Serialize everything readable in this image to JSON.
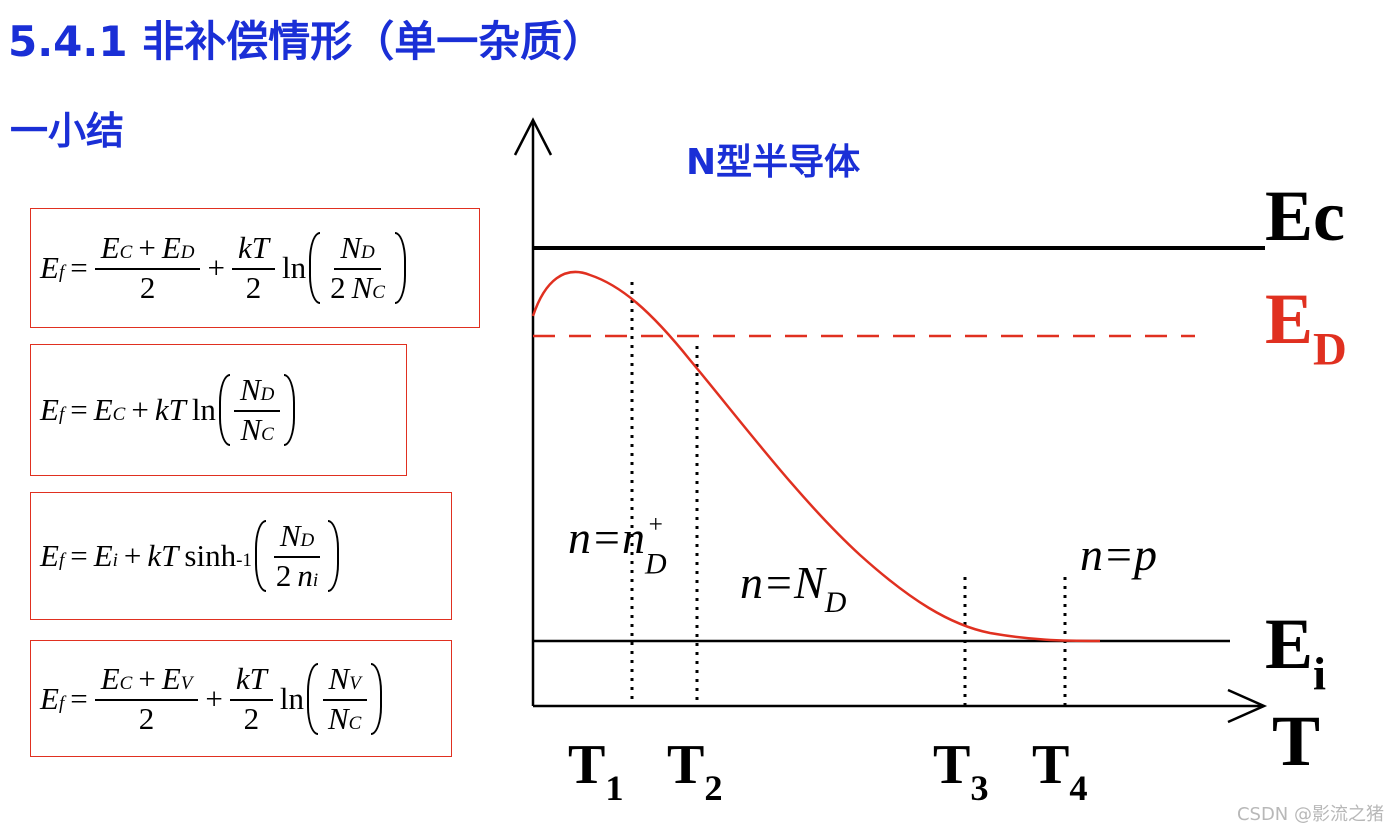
{
  "title": "5.4.1 非补偿情形（单一杂质）",
  "subtitle": "一小结",
  "formulas": [
    [
      {
        "t": "E",
        "sub": "f"
      },
      {
        "t": "="
      },
      {
        "frac": {
          "num": [
            {
              "t": "E",
              "sub": "C"
            },
            {
              "t": "+"
            },
            {
              "t": "E",
              "sub": "D"
            }
          ],
          "den": [
            {
              "t": "2"
            }
          ]
        }
      },
      {
        "t": "+"
      },
      {
        "frac": {
          "num": [
            {
              "t": "kT"
            }
          ],
          "den": [
            {
              "t": "2"
            }
          ]
        }
      },
      {
        "t": "ln"
      },
      {
        "paren": [
          {
            "frac": {
              "num": [
                {
                  "t": "N",
                  "sub": "D"
                }
              ],
              "den": [
                {
                  "t": "2"
                },
                {
                  "t": "N",
                  "sub": "C"
                }
              ]
            }
          }
        ]
      }
    ],
    [
      {
        "t": "E",
        "sub": "f"
      },
      {
        "t": "="
      },
      {
        "t": "E",
        "sub": "C"
      },
      {
        "t": "+"
      },
      {
        "t": "kT"
      },
      {
        "t": "ln"
      },
      {
        "paren": [
          {
            "frac": {
              "num": [
                {
                  "t": "N",
                  "sub": "D"
                }
              ],
              "den": [
                {
                  "t": "N",
                  "sub": "C"
                }
              ]
            }
          }
        ]
      }
    ],
    [
      {
        "t": "E",
        "sub": "f"
      },
      {
        "t": "="
      },
      {
        "t": "E",
        "sub": "i"
      },
      {
        "t": "+"
      },
      {
        "t": "kT"
      },
      {
        "t": "sinh",
        "sup": "-1"
      },
      {
        "paren": [
          {
            "frac": {
              "num": [
                {
                  "t": "N",
                  "sub": "D"
                }
              ],
              "den": [
                {
                  "t": "2"
                },
                {
                  "t": "n",
                  "sub": "i"
                }
              ]
            }
          }
        ]
      }
    ],
    [
      {
        "t": "E",
        "sub": "f"
      },
      {
        "t": "="
      },
      {
        "frac": {
          "num": [
            {
              "t": "E",
              "sub": "C"
            },
            {
              "t": "+"
            },
            {
              "t": "E",
              "sub": "V"
            }
          ],
          "den": [
            {
              "t": "2"
            }
          ]
        }
      },
      {
        "t": "+"
      },
      {
        "frac": {
          "num": [
            {
              "t": "kT"
            }
          ],
          "den": [
            {
              "t": "2"
            }
          ]
        }
      },
      {
        "t": "ln"
      },
      {
        "paren": [
          {
            "frac": {
              "num": [
                {
                  "t": "N",
                  "sub": "V"
                }
              ],
              "den": [
                {
                  "t": "N",
                  "sub": "C"
                }
              ]
            }
          }
        ]
      }
    ]
  ],
  "diagram": {
    "caption": "N型半导体",
    "ec": {
      "text": "Ec"
    },
    "ed": {
      "text": "E",
      "sub": "D"
    },
    "ei": {
      "text": "E",
      "sub": "i"
    },
    "axis": {
      "text": "T"
    },
    "temps": [
      {
        "text": "T",
        "sub": "1"
      },
      {
        "text": "T",
        "sub": "2"
      },
      {
        "text": "T",
        "sub": "3"
      },
      {
        "text": "T",
        "sub": "4"
      }
    ],
    "regions": [
      {
        "text": "n=n",
        "sub": "D",
        "sup": "+"
      },
      {
        "text": "n=N",
        "sub": "D"
      },
      {
        "text": "n=p"
      }
    ]
  },
  "watermark": "CSDN @影流之猪"
}
